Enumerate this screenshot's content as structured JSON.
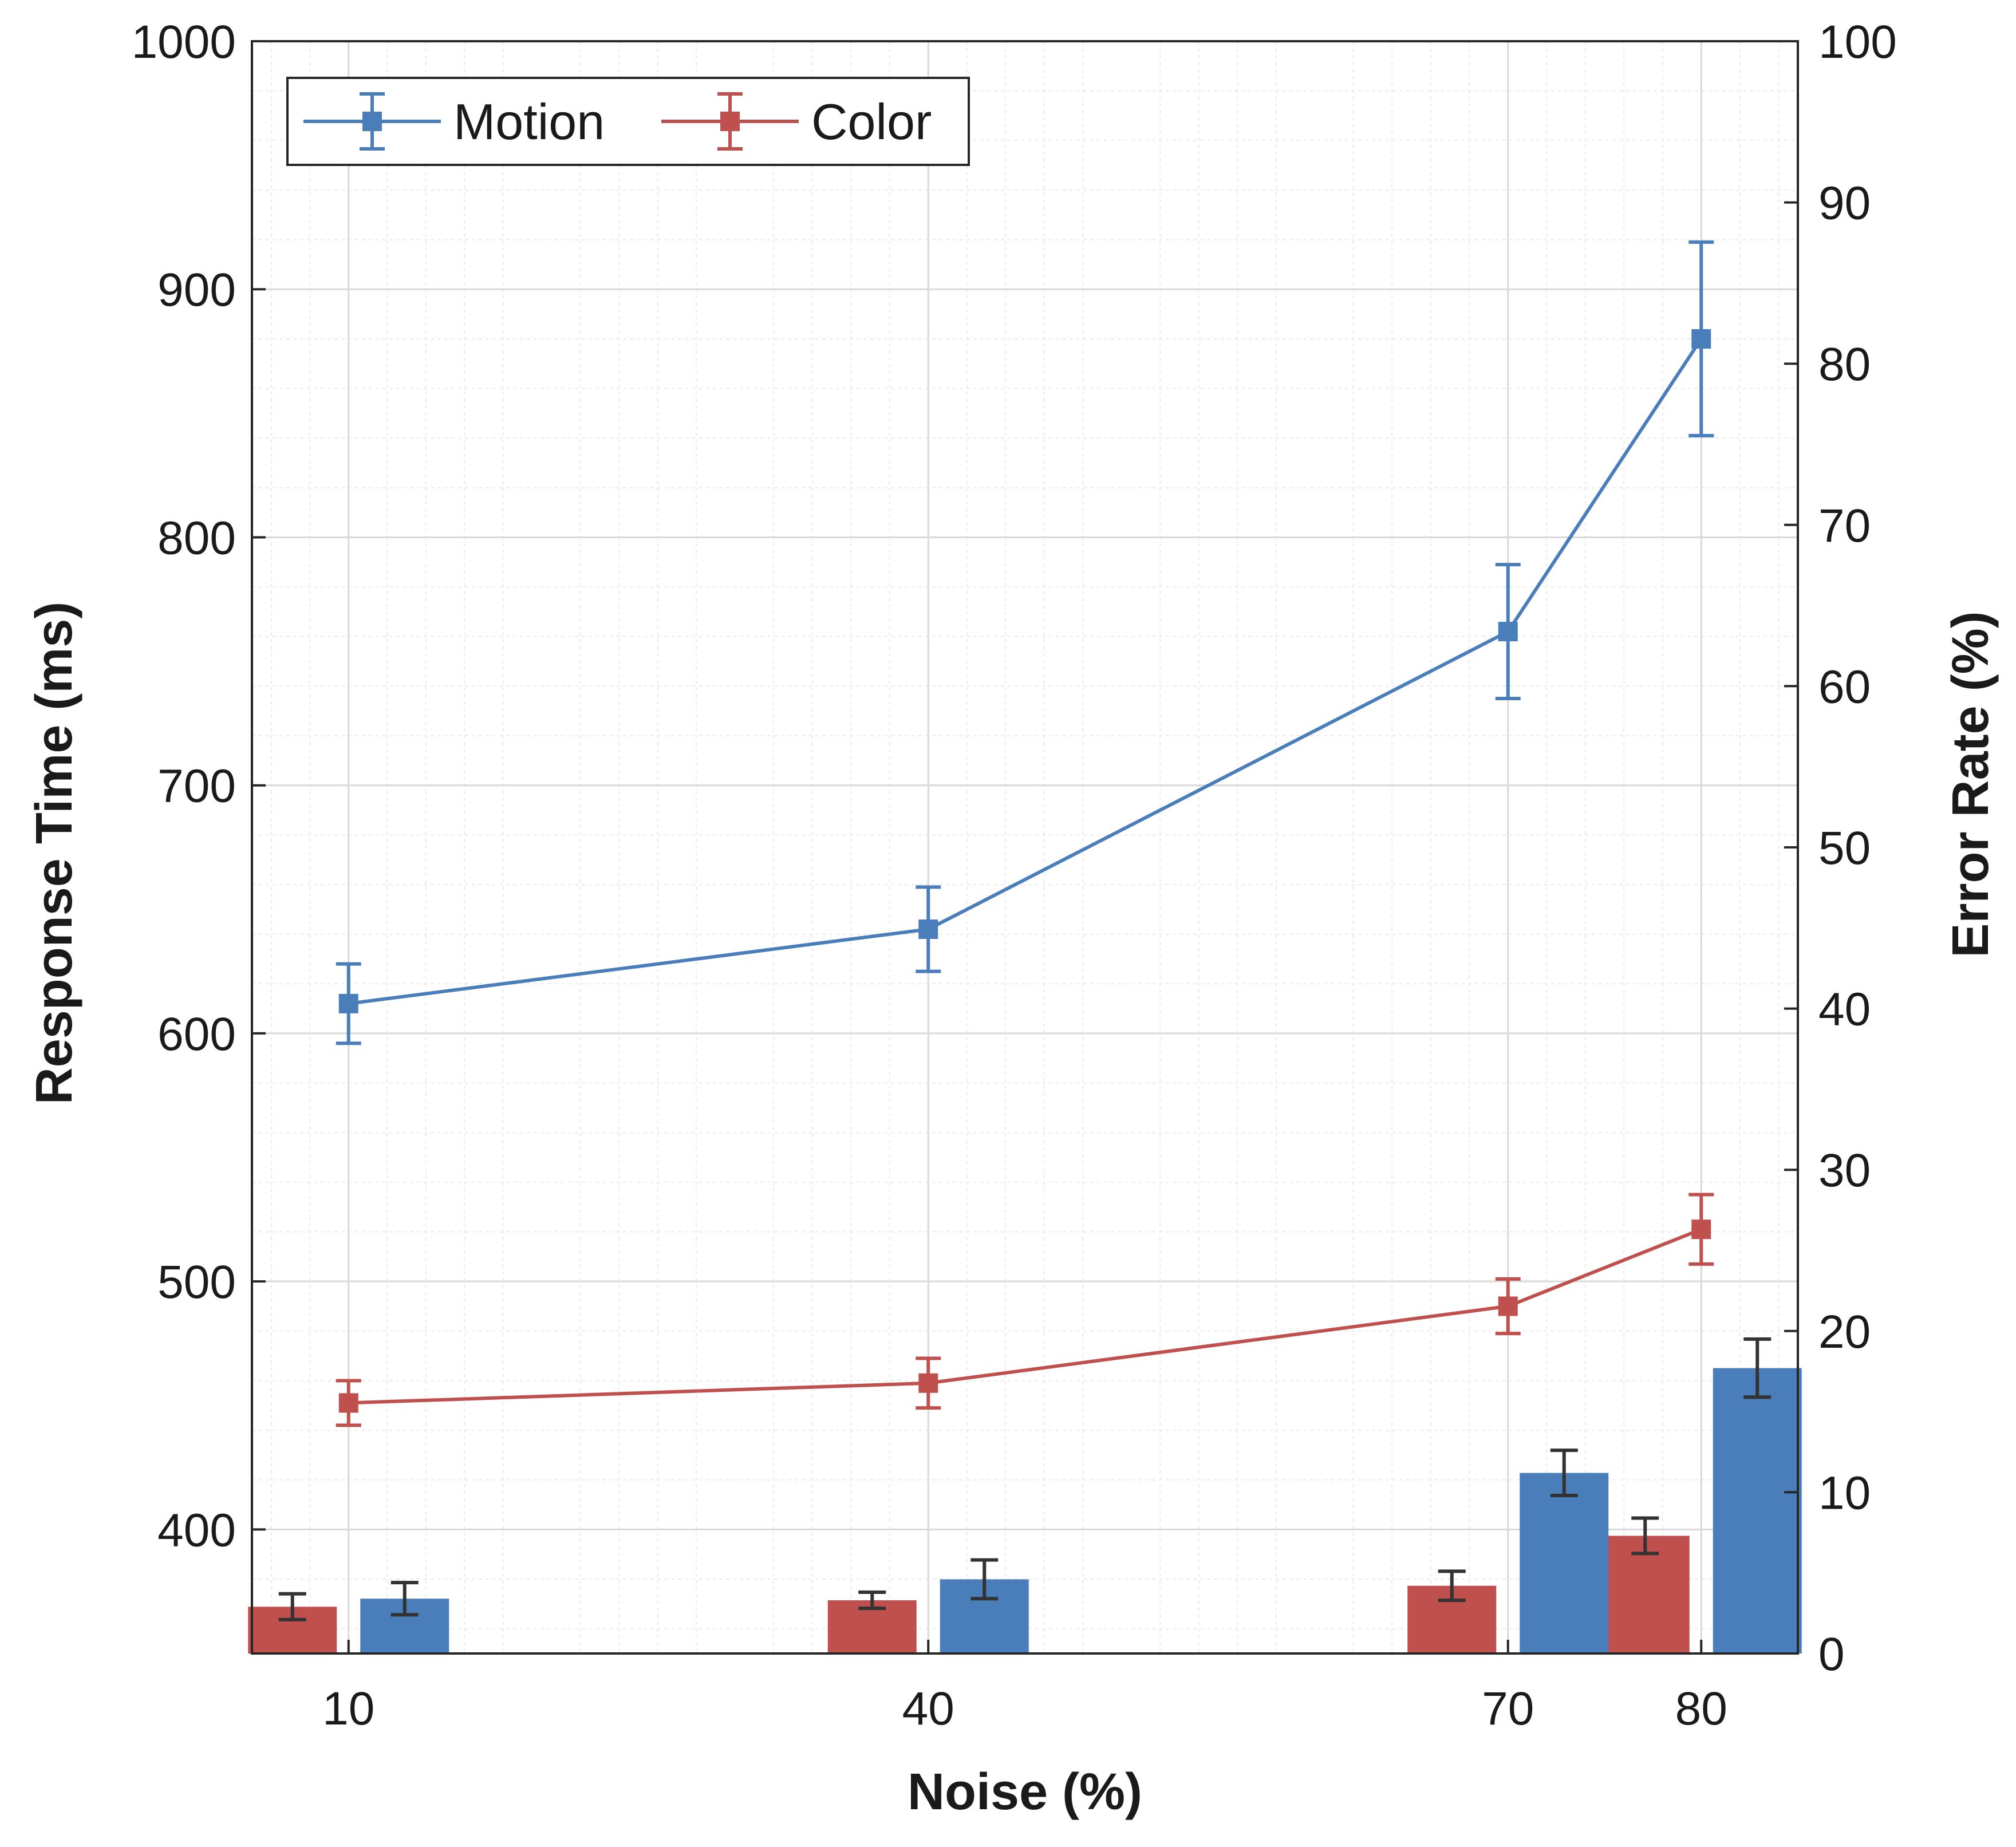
{
  "chart_data": {
    "type": "line",
    "x": [
      10,
      40,
      70,
      80
    ],
    "categories": [
      "10",
      "40",
      "70",
      "80"
    ],
    "xlabel": "Noise (%)",
    "ylabel": "Response Time (ms)",
    "y2label": "Error Rate (%)",
    "ylim": [
      350,
      1000
    ],
    "y2lim": [
      0,
      100
    ],
    "yticks": [
      400,
      500,
      600,
      700,
      800,
      900,
      1000
    ],
    "y2ticks": [
      0,
      10,
      20,
      30,
      40,
      50,
      60,
      70,
      80,
      90,
      100
    ],
    "grid": true,
    "legend_position": "top-left",
    "colors": {
      "motion": "#4a7ebb",
      "color": "#c0504d",
      "error_bar": "#333333"
    },
    "series": [
      {
        "name": "Motion",
        "axis": "left",
        "kind": "line",
        "values": [
          612,
          642,
          762,
          880
        ],
        "errors": [
          16,
          17,
          27,
          39
        ]
      },
      {
        "name": "Color",
        "axis": "left",
        "kind": "line",
        "values": [
          451,
          459,
          490,
          521
        ],
        "errors": [
          9,
          10,
          11,
          14
        ]
      }
    ],
    "bars": [
      {
        "name": "Color error rate",
        "axis": "right",
        "kind": "bar",
        "values": [
          2.9,
          3.3,
          4.2,
          7.3
        ],
        "errors": [
          0.8,
          0.5,
          0.9,
          1.1
        ]
      },
      {
        "name": "Motion error rate",
        "axis": "right",
        "kind": "bar",
        "values": [
          3.4,
          4.6,
          11.2,
          17.7
        ],
        "errors": [
          1.0,
          1.2,
          1.4,
          1.8
        ]
      }
    ]
  }
}
